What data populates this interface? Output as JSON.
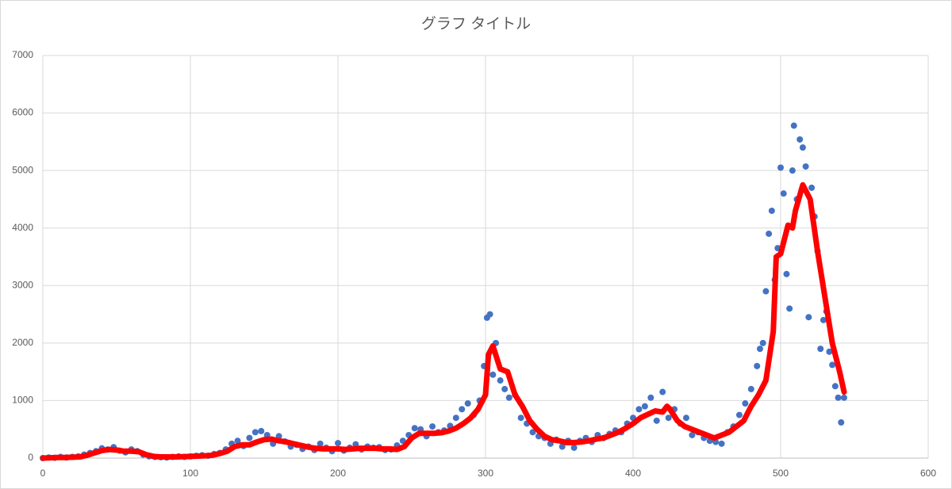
{
  "chart_data": {
    "type": "scatter",
    "title": "グラフ タイトル",
    "xlim": [
      0,
      600
    ],
    "xticks": [
      0,
      100,
      200,
      300,
      400,
      500,
      600
    ],
    "ylim": [
      0,
      7000
    ],
    "yticks": [
      0,
      1000,
      2000,
      3000,
      4000,
      5000,
      6000,
      7000
    ],
    "grid": true,
    "series": [
      {
        "type": "scatter",
        "color": "#4472c4",
        "x": [
          0,
          4,
          8,
          12,
          16,
          20,
          24,
          28,
          32,
          36,
          40,
          44,
          48,
          52,
          56,
          60,
          64,
          68,
          72,
          76,
          80,
          84,
          88,
          92,
          96,
          100,
          104,
          108,
          112,
          116,
          120,
          124,
          128,
          132,
          136,
          140,
          144,
          148,
          152,
          156,
          160,
          164,
          168,
          172,
          176,
          180,
          184,
          188,
          192,
          196,
          200,
          204,
          208,
          212,
          216,
          220,
          224,
          228,
          232,
          236,
          240,
          244,
          248,
          252,
          256,
          260,
          264,
          268,
          272,
          276,
          280,
          284,
          288,
          292,
          296,
          299,
          301,
          303,
          305,
          307,
          310,
          313,
          316,
          320,
          324,
          328,
          332,
          336,
          340,
          344,
          348,
          352,
          356,
          360,
          364,
          368,
          372,
          376,
          380,
          384,
          388,
          392,
          396,
          400,
          404,
          408,
          412,
          416,
          420,
          424,
          428,
          432,
          436,
          440,
          444,
          448,
          452,
          456,
          460,
          464,
          468,
          472,
          476,
          480,
          484,
          486,
          488,
          490,
          492,
          494,
          496,
          498,
          500,
          502,
          504,
          506,
          508,
          509,
          511,
          513,
          515,
          517,
          519,
          521,
          523,
          525,
          527,
          529,
          531,
          533,
          535,
          537,
          539,
          541,
          543
        ],
        "values": [
          0,
          10,
          5,
          20,
          10,
          20,
          30,
          60,
          90,
          120,
          170,
          150,
          190,
          130,
          100,
          150,
          120,
          60,
          30,
          20,
          15,
          10,
          20,
          30,
          20,
          30,
          40,
          50,
          40,
          70,
          90,
          150,
          250,
          300,
          210,
          350,
          450,
          470,
          400,
          250,
          380,
          290,
          200,
          230,
          160,
          200,
          140,
          250,
          180,
          120,
          260,
          130,
          180,
          240,
          150,
          200,
          180,
          190,
          140,
          150,
          220,
          300,
          400,
          520,
          500,
          380,
          550,
          450,
          480,
          560,
          700,
          850,
          950,
          750,
          1000,
          1600,
          2440,
          2500,
          1450,
          2000,
          1350,
          1200,
          1050,
          1100,
          700,
          600,
          450,
          380,
          350,
          250,
          320,
          200,
          300,
          180,
          300,
          350,
          280,
          400,
          350,
          420,
          480,
          450,
          600,
          700,
          850,
          900,
          1050,
          650,
          1150,
          700,
          850,
          600,
          700,
          400,
          450,
          350,
          300,
          280,
          250,
          450,
          550,
          750,
          950,
          1200,
          1600,
          1900,
          2000,
          2900,
          3900,
          4300,
          3100,
          3650,
          5050,
          4600,
          3200,
          2600,
          5000,
          5780,
          4500,
          5540,
          5400,
          5070,
          2450,
          4700,
          4200,
          3600,
          1900,
          2400,
          2550,
          1850,
          1620,
          1250,
          1050,
          620,
          1050
        ]
      },
      {
        "type": "line",
        "color": "#ff0000",
        "x": [
          0,
          5,
          10,
          15,
          20,
          25,
          30,
          35,
          40,
          45,
          50,
          55,
          60,
          65,
          70,
          75,
          80,
          85,
          90,
          95,
          100,
          105,
          110,
          115,
          120,
          125,
          130,
          135,
          140,
          145,
          150,
          155,
          160,
          165,
          170,
          175,
          180,
          185,
          190,
          195,
          200,
          205,
          210,
          215,
          220,
          225,
          230,
          235,
          240,
          245,
          250,
          255,
          260,
          265,
          270,
          275,
          280,
          285,
          290,
          295,
          300,
          302,
          305,
          310,
          315,
          320,
          325,
          330,
          335,
          340,
          345,
          350,
          355,
          360,
          365,
          370,
          375,
          380,
          385,
          390,
          395,
          400,
          405,
          410,
          415,
          420,
          423,
          425,
          430,
          435,
          440,
          445,
          450,
          455,
          460,
          465,
          470,
          475,
          480,
          485,
          490,
          495,
          497,
          500,
          505,
          508,
          510,
          515,
          520,
          525,
          530,
          535,
          540,
          543
        ],
        "values": [
          0,
          5,
          10,
          10,
          15,
          20,
          50,
          90,
          130,
          150,
          140,
          120,
          120,
          110,
          60,
          30,
          20,
          20,
          20,
          25,
          30,
          35,
          40,
          50,
          80,
          120,
          200,
          230,
          230,
          280,
          320,
          330,
          300,
          280,
          250,
          220,
          190,
          170,
          160,
          160,
          160,
          150,
          160,
          170,
          170,
          170,
          160,
          160,
          150,
          200,
          350,
          430,
          430,
          430,
          440,
          470,
          520,
          600,
          700,
          850,
          1100,
          1800,
          1950,
          1550,
          1500,
          1100,
          900,
          650,
          500,
          380,
          320,
          300,
          270,
          270,
          280,
          300,
          330,
          350,
          400,
          450,
          520,
          600,
          700,
          760,
          820,
          800,
          900,
          850,
          650,
          550,
          500,
          450,
          400,
          350,
          400,
          450,
          550,
          650,
          900,
          1100,
          1350,
          2200,
          3500,
          3550,
          4050,
          4000,
          4300,
          4750,
          4500,
          3600,
          2800,
          2000,
          1500,
          1150
        ]
      }
    ]
  }
}
